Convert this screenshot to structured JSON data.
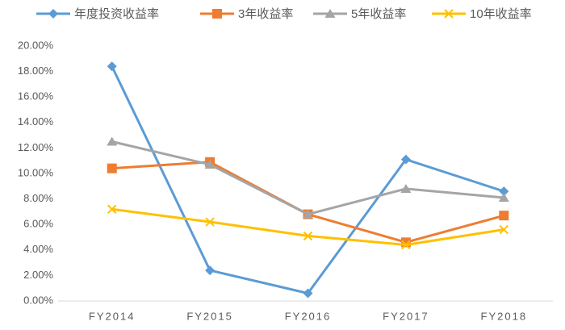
{
  "chart_data": {
    "type": "line",
    "categories": [
      "FY2014",
      "FY2015",
      "FY2016",
      "FY2017",
      "FY2018"
    ],
    "series": [
      {
        "name": "年度投资收益率",
        "color": "#5b9bd5",
        "marker": "diamond",
        "values": [
          18.4,
          2.4,
          0.6,
          11.1,
          8.6
        ]
      },
      {
        "name": "3年收益率",
        "color": "#ed7d31",
        "marker": "square",
        "values": [
          10.4,
          10.9,
          6.8,
          4.6,
          6.7
        ]
      },
      {
        "name": "5年收益率",
        "color": "#a5a5a5",
        "marker": "triangle",
        "values": [
          12.5,
          10.7,
          6.8,
          8.8,
          8.1
        ]
      },
      {
        "name": "10年收益率",
        "color": "#ffc000",
        "marker": "x",
        "values": [
          7.2,
          6.2,
          5.1,
          4.4,
          5.6
        ]
      }
    ],
    "ylim": [
      0,
      20
    ],
    "yticks": [
      {
        "value": 0,
        "label": "0.00%"
      },
      {
        "value": 2,
        "label": "2.00%"
      },
      {
        "value": 4,
        "label": "4.00%"
      },
      {
        "value": 6,
        "label": "6.00%"
      },
      {
        "value": 8,
        "label": "8.00%"
      },
      {
        "value": 10,
        "label": "10.00%"
      },
      {
        "value": 12,
        "label": "12.00%"
      },
      {
        "value": 14,
        "label": "14.00%"
      },
      {
        "value": 16,
        "label": "16.00%"
      },
      {
        "value": 18,
        "label": "18.00%"
      },
      {
        "value": 20,
        "label": "20.00%"
      }
    ],
    "grid": false,
    "legend": "top"
  }
}
